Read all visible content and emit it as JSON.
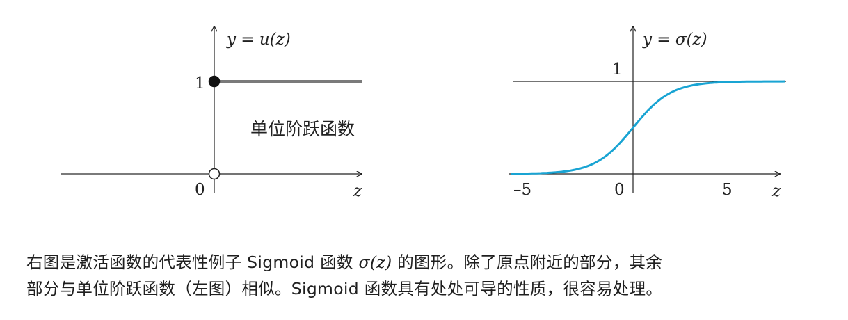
{
  "left_graph": {
    "function_label": "y = u(z)",
    "annotation": "单位阶跃函数",
    "tick_one": "1",
    "origin": "0",
    "x_axis_label": "z",
    "step_at": 0,
    "low_value": 0,
    "high_value": 1,
    "colors": {
      "step": "#7a7a7a",
      "axis": "#222222"
    }
  },
  "right_graph": {
    "function_label": "y = σ(z)",
    "tick_one": "1",
    "x_ticks": [
      "–5",
      "0",
      "5"
    ],
    "x_axis_label": "z",
    "colors": {
      "curve": "#19a4d3",
      "axis": "#222222"
    }
  },
  "chart_data": [
    {
      "type": "line",
      "title": "",
      "xlabel": "z",
      "ylabel": "y = u(z)",
      "series": [
        {
          "name": "单位阶跃函数",
          "x": [
            -10,
            0,
            0,
            10
          ],
          "y": [
            0,
            0,
            1,
            1
          ]
        }
      ],
      "markers": [
        {
          "x": 0,
          "y": 1,
          "style": "filled"
        },
        {
          "x": 0,
          "y": 0,
          "style": "hollow"
        }
      ],
      "ylim": [
        0,
        1
      ],
      "grid": false
    },
    {
      "type": "line",
      "title": "",
      "xlabel": "z",
      "ylabel": "y = σ(z)",
      "x_ticks": [
        -5,
        0,
        5
      ],
      "series": [
        {
          "x": [
            -8,
            -7,
            -6,
            -5,
            -4,
            -3,
            -2,
            -1,
            0,
            1,
            2,
            3,
            4,
            5,
            6,
            7,
            8,
            10
          ],
          "y": [
            0,
            0,
            0,
            0.007,
            0.018,
            0.047,
            0.119,
            0.269,
            0.5,
            0.731,
            0.881,
            0.953,
            0.982,
            0.993,
            0.998,
            1,
            1,
            1
          ]
        }
      ],
      "ylim": [
        0,
        1
      ],
      "grid": false
    }
  ],
  "caption": {
    "line1_a": "右图是激活函数的代表性例子 Sigmoid 函数 ",
    "line1_math": "σ(z)",
    "line1_b": " 的图形。除了原点附近的部分，其余",
    "line2": "部分与单位阶跃函数（左图）相似。Sigmoid 函数具有处处可导的性质，很容易处理。"
  }
}
